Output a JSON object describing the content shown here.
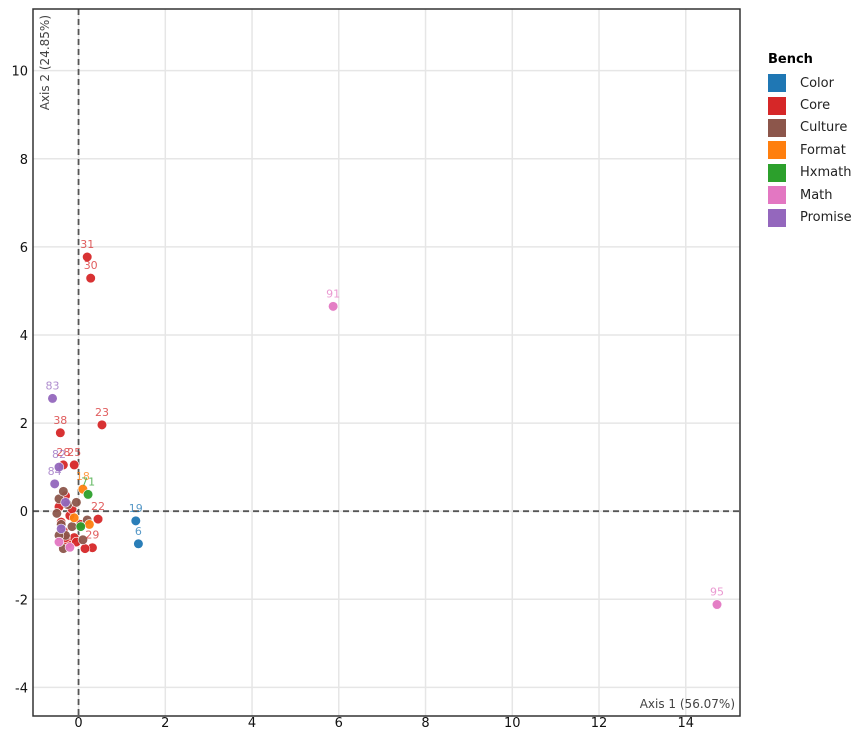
{
  "chart_data": {
    "type": "scatter",
    "xlabel": "Axis 1 (56.07%)",
    "ylabel": "Axis 2 (24.85%)",
    "xlim": [
      -1.05,
      15.25
    ],
    "ylim": [
      -4.65,
      11.4
    ],
    "x_ticks": [
      0,
      2,
      4,
      6,
      8,
      10,
      12,
      14
    ],
    "y_ticks": [
      -4,
      -2,
      0,
      2,
      4,
      6,
      8,
      10
    ],
    "grid": true,
    "reference_lines": {
      "x": 0,
      "y": 0
    },
    "legend": {
      "title": "Bench",
      "position": "right"
    },
    "series": [
      {
        "name": "Color",
        "color": "#1f77b4",
        "points": [
          {
            "x": 1.32,
            "y": -0.22,
            "label": "19"
          },
          {
            "x": 1.38,
            "y": -0.74,
            "label": "6"
          }
        ]
      },
      {
        "name": "Core",
        "color": "#d62728",
        "points": [
          {
            "x": 0.2,
            "y": 5.77,
            "label": "31"
          },
          {
            "x": 0.28,
            "y": 5.29,
            "label": "30"
          },
          {
            "x": 0.54,
            "y": 1.96,
            "label": "23"
          },
          {
            "x": -0.42,
            "y": 1.78,
            "label": "38"
          },
          {
            "x": -0.35,
            "y": 1.05,
            "label": "28"
          },
          {
            "x": -0.1,
            "y": 1.05,
            "label": "25"
          },
          {
            "x": 0.45,
            "y": -0.18,
            "label": "22"
          },
          {
            "x": 0.32,
            "y": -0.83,
            "label": "29"
          },
          {
            "x": 0.15,
            "y": -0.85,
            "label": ""
          },
          {
            "x": -0.3,
            "y": 0.35,
            "label": ""
          },
          {
            "x": -0.45,
            "y": 0.1,
            "label": ""
          },
          {
            "x": -0.2,
            "y": -0.1,
            "label": ""
          },
          {
            "x": -0.35,
            "y": -0.45,
            "label": ""
          },
          {
            "x": -0.1,
            "y": -0.6,
            "label": ""
          },
          {
            "x": -0.25,
            "y": -0.75,
            "label": ""
          },
          {
            "x": 0.05,
            "y": -0.3,
            "label": ""
          },
          {
            "x": -0.4,
            "y": -0.25,
            "label": ""
          },
          {
            "x": -0.15,
            "y": 0.05,
            "label": ""
          },
          {
            "x": -0.05,
            "y": -0.7,
            "label": ""
          },
          {
            "x": -0.3,
            "y": -0.6,
            "label": ""
          }
        ]
      },
      {
        "name": "Culture",
        "color": "#8c564b",
        "points": [
          {
            "x": -0.45,
            "y": 0.28,
            "label": ""
          },
          {
            "x": -0.35,
            "y": 0.45,
            "label": ""
          },
          {
            "x": -0.25,
            "y": 0.15,
            "label": ""
          },
          {
            "x": -0.5,
            "y": -0.05,
            "label": ""
          },
          {
            "x": -0.4,
            "y": -0.3,
            "label": ""
          },
          {
            "x": -0.3,
            "y": -0.55,
            "label": ""
          },
          {
            "x": -0.35,
            "y": -0.85,
            "label": ""
          },
          {
            "x": 0.1,
            "y": -0.65,
            "label": ""
          },
          {
            "x": 0.2,
            "y": -0.2,
            "label": ""
          },
          {
            "x": -0.15,
            "y": -0.35,
            "label": ""
          },
          {
            "x": -0.05,
            "y": 0.2,
            "label": ""
          },
          {
            "x": -0.45,
            "y": -0.55,
            "label": ""
          }
        ]
      },
      {
        "name": "Format",
        "color": "#ff7f0e",
        "points": [
          {
            "x": 0.1,
            "y": 0.5,
            "label": "18"
          },
          {
            "x": 0.25,
            "y": -0.3,
            "label": ""
          },
          {
            "x": -0.1,
            "y": -0.15,
            "label": ""
          }
        ]
      },
      {
        "name": "Hxmath",
        "color": "#2ca02c",
        "points": [
          {
            "x": 0.22,
            "y": 0.38,
            "label": "71"
          },
          {
            "x": 0.05,
            "y": -0.35,
            "label": ""
          }
        ]
      },
      {
        "name": "Math",
        "color": "#e377c2",
        "points": [
          {
            "x": 5.87,
            "y": 4.65,
            "label": "91"
          },
          {
            "x": 14.72,
            "y": -2.12,
            "label": "95"
          },
          {
            "x": -0.2,
            "y": -0.82,
            "label": ""
          },
          {
            "x": -0.45,
            "y": -0.7,
            "label": ""
          }
        ]
      },
      {
        "name": "Promise",
        "color": "#9467bd",
        "points": [
          {
            "x": -0.6,
            "y": 2.56,
            "label": "83"
          },
          {
            "x": -0.45,
            "y": 1.0,
            "label": "82"
          },
          {
            "x": -0.55,
            "y": 0.62,
            "label": "84"
          },
          {
            "x": -0.3,
            "y": 0.2,
            "label": ""
          },
          {
            "x": -0.4,
            "y": -0.4,
            "label": ""
          }
        ]
      }
    ]
  }
}
